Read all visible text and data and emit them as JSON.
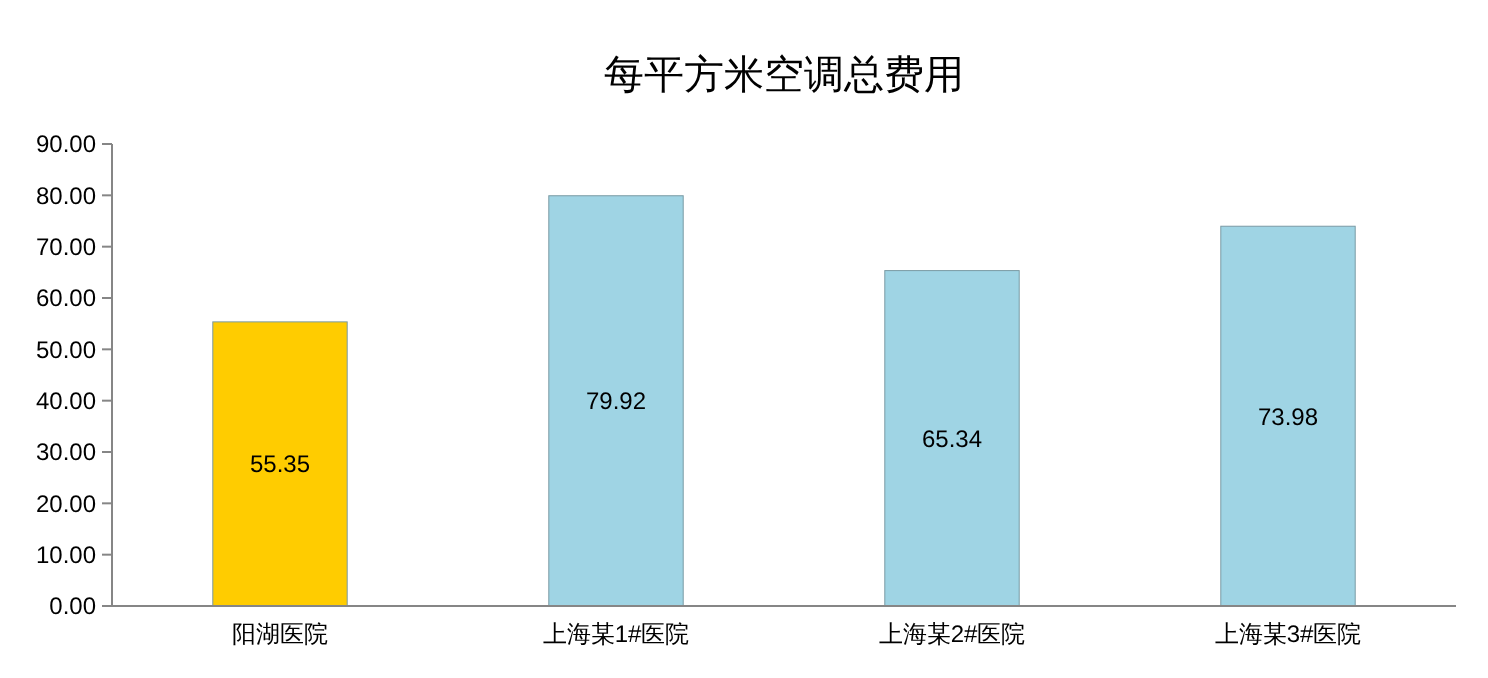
{
  "chart_data": {
    "type": "bar",
    "title": "每平方米空调总费用",
    "categories": [
      "阳湖医院",
      "上海某1#医院",
      "上海某2#医院",
      "上海某3#医院"
    ],
    "values": [
      55.35,
      79.92,
      65.34,
      73.98
    ],
    "colors": [
      "#ffcc00",
      "#9fd4e4",
      "#9fd4e4",
      "#9fd4e4"
    ],
    "ylim": [
      0,
      90
    ],
    "yticks": [
      {
        "value": 0,
        "label": "0.00"
      },
      {
        "value": 10,
        "label": "10.00"
      },
      {
        "value": 20,
        "label": "20.00"
      },
      {
        "value": 30,
        "label": "30.00"
      },
      {
        "value": 40,
        "label": "40.00"
      },
      {
        "value": 50,
        "label": "50.00"
      },
      {
        "value": 60,
        "label": "60.00"
      },
      {
        "value": 70,
        "label": "70.00"
      },
      {
        "value": 80,
        "label": "80.00"
      },
      {
        "value": 90,
        "label": "90.00"
      }
    ],
    "data_labels": true
  }
}
